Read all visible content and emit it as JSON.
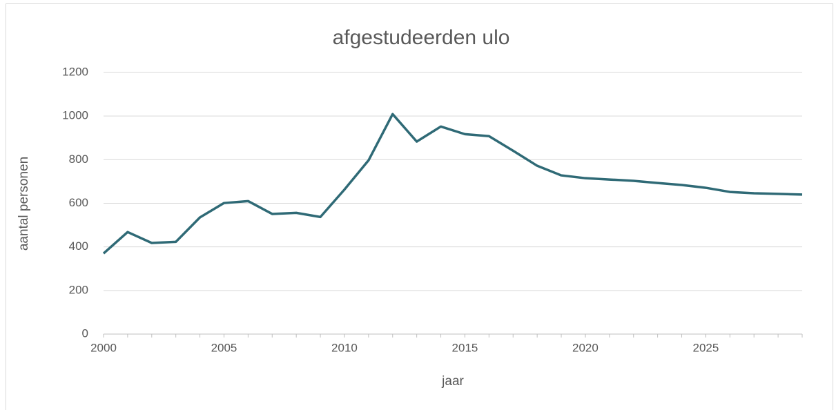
{
  "chart_data": {
    "type": "line",
    "title": "afgestudeerden ulo",
    "xlabel": "jaar",
    "ylabel": "aantal personen",
    "x": [
      2000,
      2001,
      2002,
      2003,
      2004,
      2005,
      2006,
      2007,
      2008,
      2009,
      2010,
      2011,
      2012,
      2013,
      2014,
      2015,
      2016,
      2017,
      2018,
      2019,
      2020,
      2021,
      2022,
      2023,
      2024,
      2025,
      2026,
      2027,
      2028,
      2029
    ],
    "series": [
      {
        "name": "afgestudeerden ulo",
        "color": "#2f6a76",
        "values": [
          370,
          468,
          418,
          423,
          535,
          601,
          610,
          551,
          556,
          537,
          663,
          797,
          1009,
          883,
          952,
          917,
          908,
          841,
          772,
          728,
          715,
          709,
          703,
          693,
          684,
          671,
          652,
          646,
          643,
          640
        ]
      }
    ],
    "xlim": [
      2000,
      2029
    ],
    "xticks": [
      2000,
      2005,
      2010,
      2015,
      2020,
      2025
    ],
    "ylim": [
      0,
      1200
    ],
    "yticks": [
      0,
      200,
      400,
      600,
      800,
      1000,
      1200
    ],
    "grid": true
  }
}
